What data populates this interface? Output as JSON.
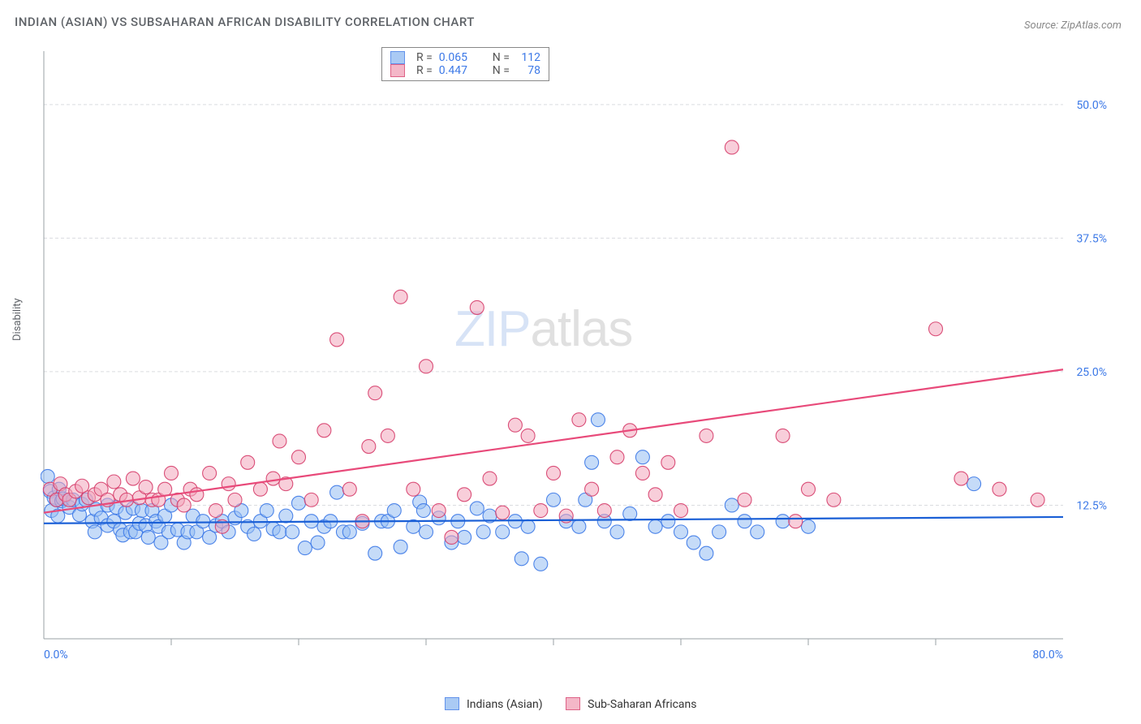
{
  "title": "INDIAN (ASIAN) VS SUBSAHARAN AFRICAN DISABILITY CORRELATION CHART",
  "source": "Source: ZipAtlas.com",
  "watermark": {
    "zip": "ZIP",
    "atlas": "atlas"
  },
  "chart": {
    "type": "scatter",
    "ylabel": "Disability",
    "xlim": [
      0,
      80
    ],
    "ylim": [
      0,
      55
    ],
    "yticks": [
      {
        "v": 12.5,
        "label": "12.5%"
      },
      {
        "v": 25.0,
        "label": "25.0%"
      },
      {
        "v": 37.5,
        "label": "37.5%"
      },
      {
        "v": 50.0,
        "label": "50.0%"
      }
    ],
    "xticks": [
      {
        "v": 0,
        "label": "0.0%"
      },
      {
        "v": 80,
        "label": "80.0%"
      }
    ],
    "xminor": [
      10,
      20,
      30,
      40,
      50,
      60,
      70
    ],
    "grid_color": "#dadce0",
    "axis_color": "#9aa0a6",
    "background_color": "#ffffff",
    "marker_radius": 8.5,
    "marker_stroke_width": 1.1,
    "series": [
      {
        "name": "Indians (Asian)",
        "fill_color": "#96bdf2",
        "fill_opacity": 0.55,
        "stroke_color": "#3b78e7",
        "trend_color": "#1a5fd6",
        "trend": {
          "x1": 0,
          "y1": 10.8,
          "x2": 80,
          "y2": 11.4
        },
        "R": "0.065",
        "N": "112",
        "points": [
          [
            0.5,
            13.8
          ],
          [
            0.8,
            13.2
          ],
          [
            0.6,
            12.0
          ],
          [
            1.0,
            13.0
          ],
          [
            1.4,
            12.9
          ],
          [
            0.3,
            15.2
          ],
          [
            1.2,
            14.0
          ],
          [
            1.1,
            11.5
          ],
          [
            1.5,
            13.1
          ],
          [
            2.0,
            12.3
          ],
          [
            2.3,
            13.0
          ],
          [
            2.8,
            11.6
          ],
          [
            3.0,
            12.6
          ],
          [
            3.3,
            13.0
          ],
          [
            3.8,
            11.0
          ],
          [
            4.0,
            10.0
          ],
          [
            4.1,
            12.1
          ],
          [
            4.5,
            11.3
          ],
          [
            5.0,
            10.6
          ],
          [
            5.0,
            12.5
          ],
          [
            5.5,
            11.0
          ],
          [
            5.7,
            12.3
          ],
          [
            6.0,
            10.2
          ],
          [
            6.2,
            9.7
          ],
          [
            6.4,
            11.8
          ],
          [
            6.8,
            10.0
          ],
          [
            7.0,
            12.2
          ],
          [
            7.2,
            10.0
          ],
          [
            7.5,
            10.8
          ],
          [
            7.7,
            12.0
          ],
          [
            8.0,
            10.6
          ],
          [
            8.2,
            9.5
          ],
          [
            8.5,
            12.0
          ],
          [
            8.8,
            11.0
          ],
          [
            9.0,
            10.5
          ],
          [
            9.2,
            9.0
          ],
          [
            9.5,
            11.5
          ],
          [
            9.8,
            10.0
          ],
          [
            10.0,
            12.5
          ],
          [
            10.5,
            10.2
          ],
          [
            11.0,
            9.0
          ],
          [
            11.3,
            10.0
          ],
          [
            11.7,
            11.5
          ],
          [
            12.0,
            10.0
          ],
          [
            12.5,
            11.0
          ],
          [
            13.0,
            9.5
          ],
          [
            13.5,
            10.6
          ],
          [
            14.0,
            11.0
          ],
          [
            14.5,
            10.0
          ],
          [
            15.0,
            11.3
          ],
          [
            15.5,
            12.0
          ],
          [
            16.0,
            10.5
          ],
          [
            16.5,
            9.8
          ],
          [
            17.0,
            11.0
          ],
          [
            17.5,
            12.0
          ],
          [
            18.0,
            10.3
          ],
          [
            18.5,
            10.0
          ],
          [
            19.0,
            11.5
          ],
          [
            19.5,
            10.0
          ],
          [
            20.0,
            12.7
          ],
          [
            20.5,
            8.5
          ],
          [
            21.0,
            11.0
          ],
          [
            21.5,
            9.0
          ],
          [
            22.0,
            10.5
          ],
          [
            22.5,
            11.0
          ],
          [
            23.0,
            13.7
          ],
          [
            23.5,
            10.0
          ],
          [
            24.0,
            10.0
          ],
          [
            25.0,
            10.8
          ],
          [
            26.0,
            8.0
          ],
          [
            26.5,
            11.0
          ],
          [
            27.0,
            11.0
          ],
          [
            27.5,
            12.0
          ],
          [
            28.0,
            8.6
          ],
          [
            29.0,
            10.5
          ],
          [
            29.5,
            12.8
          ],
          [
            29.8,
            12.0
          ],
          [
            30.0,
            10.0
          ],
          [
            31.0,
            11.3
          ],
          [
            32.0,
            9.0
          ],
          [
            32.5,
            11.0
          ],
          [
            33.0,
            9.5
          ],
          [
            34.0,
            12.2
          ],
          [
            34.5,
            10.0
          ],
          [
            35.0,
            11.5
          ],
          [
            36.0,
            10.0
          ],
          [
            37.0,
            11.0
          ],
          [
            37.5,
            7.5
          ],
          [
            38.0,
            10.5
          ],
          [
            39.0,
            7.0
          ],
          [
            40.0,
            13.0
          ],
          [
            41.0,
            11.0
          ],
          [
            42.0,
            10.5
          ],
          [
            42.5,
            13.0
          ],
          [
            43.0,
            16.5
          ],
          [
            43.5,
            20.5
          ],
          [
            44.0,
            11.0
          ],
          [
            45.0,
            10.0
          ],
          [
            46.0,
            11.7
          ],
          [
            47.0,
            17.0
          ],
          [
            48.0,
            10.5
          ],
          [
            49.0,
            11.0
          ],
          [
            50.0,
            10.0
          ],
          [
            51.0,
            9.0
          ],
          [
            52.0,
            8.0
          ],
          [
            53.0,
            10.0
          ],
          [
            54.0,
            12.5
          ],
          [
            55.0,
            11.0
          ],
          [
            56.0,
            10.0
          ],
          [
            58.0,
            11.0
          ],
          [
            60.0,
            10.5
          ],
          [
            73.0,
            14.5
          ]
        ]
      },
      {
        "name": "Sub-Saharan Africans",
        "fill_color": "#f2a6bb",
        "fill_opacity": 0.55,
        "stroke_color": "#d63d6a",
        "trend_color": "#e84a7a",
        "trend": {
          "x1": 0,
          "y1": 11.8,
          "x2": 80,
          "y2": 25.2
        },
        "R": "0.447",
        "N": "78",
        "points": [
          [
            0.5,
            14.0
          ],
          [
            1.0,
            13.0
          ],
          [
            1.3,
            14.5
          ],
          [
            1.7,
            13.5
          ],
          [
            2.0,
            13.0
          ],
          [
            2.5,
            13.8
          ],
          [
            3.0,
            14.3
          ],
          [
            3.5,
            13.2
          ],
          [
            4.0,
            13.5
          ],
          [
            4.5,
            14.0
          ],
          [
            5.0,
            13.0
          ],
          [
            5.5,
            14.7
          ],
          [
            6.0,
            13.5
          ],
          [
            6.5,
            13.0
          ],
          [
            7.0,
            15.0
          ],
          [
            7.5,
            13.2
          ],
          [
            8.0,
            14.2
          ],
          [
            8.5,
            13.0
          ],
          [
            9.0,
            13.0
          ],
          [
            9.5,
            14.0
          ],
          [
            10.0,
            15.5
          ],
          [
            10.5,
            13.0
          ],
          [
            11.0,
            12.5
          ],
          [
            11.5,
            14.0
          ],
          [
            12.0,
            13.5
          ],
          [
            13.0,
            15.5
          ],
          [
            13.5,
            12.0
          ],
          [
            14.0,
            10.5
          ],
          [
            14.5,
            14.5
          ],
          [
            15.0,
            13.0
          ],
          [
            16.0,
            16.5
          ],
          [
            17.0,
            14.0
          ],
          [
            18.0,
            15.0
          ],
          [
            18.5,
            18.5
          ],
          [
            19.0,
            14.5
          ],
          [
            20.0,
            17.0
          ],
          [
            21.0,
            13.0
          ],
          [
            22.0,
            19.5
          ],
          [
            23.0,
            28.0
          ],
          [
            24.0,
            14.0
          ],
          [
            25.0,
            11.0
          ],
          [
            25.5,
            18.0
          ],
          [
            26.0,
            23.0
          ],
          [
            27.0,
            19.0
          ],
          [
            28.0,
            32.0
          ],
          [
            29.0,
            14.0
          ],
          [
            30.0,
            25.5
          ],
          [
            31.0,
            12.0
          ],
          [
            32.0,
            9.5
          ],
          [
            33.0,
            13.5
          ],
          [
            34.0,
            31.0
          ],
          [
            35.0,
            15.0
          ],
          [
            36.0,
            11.8
          ],
          [
            37.0,
            20.0
          ],
          [
            38.0,
            19.0
          ],
          [
            39.0,
            12.0
          ],
          [
            40.0,
            15.5
          ],
          [
            41.0,
            11.5
          ],
          [
            42.0,
            20.5
          ],
          [
            43.0,
            14.0
          ],
          [
            44.0,
            12.0
          ],
          [
            45.0,
            17.0
          ],
          [
            46.0,
            19.5
          ],
          [
            47.0,
            15.5
          ],
          [
            48.0,
            13.5
          ],
          [
            49.0,
            16.5
          ],
          [
            50.0,
            12.0
          ],
          [
            52.0,
            19.0
          ],
          [
            54.0,
            46.0
          ],
          [
            55.0,
            13.0
          ],
          [
            58.0,
            19.0
          ],
          [
            59.0,
            11.0
          ],
          [
            60.0,
            14.0
          ],
          [
            62.0,
            13.0
          ],
          [
            70.0,
            29.0
          ],
          [
            72.0,
            15.0
          ],
          [
            75.0,
            14.0
          ],
          [
            78.0,
            13.0
          ]
        ]
      }
    ]
  },
  "bottom_legend": {
    "items": [
      {
        "label": "Indians (Asian)",
        "fill": "#96bdf2",
        "stroke": "#3b78e7"
      },
      {
        "label": "Sub-Saharan Africans",
        "fill": "#f2a6bb",
        "stroke": "#d63d6a"
      }
    ]
  },
  "top_legend": {
    "r_label": "R =",
    "n_label": "N ="
  }
}
